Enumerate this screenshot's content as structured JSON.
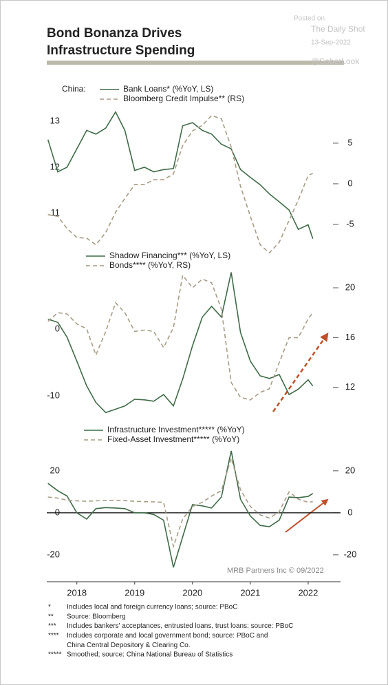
{
  "header": {
    "title": [
      "Bond Bonanza Drives",
      "Infrastructure Spending"
    ]
  },
  "watermark": {
    "posted": "Posted on",
    "site": "The Daily Shot",
    "date": "13-Sep-2022",
    "handle": "@SoberLook"
  },
  "chart_data": [
    {
      "type": "line",
      "label": "China:",
      "x": [
        2018,
        2018.17,
        2018.33,
        2018.5,
        2018.67,
        2018.83,
        2019,
        2019.17,
        2019.33,
        2019.5,
        2019.67,
        2019.83,
        2020,
        2020.17,
        2020.33,
        2020.5,
        2020.67,
        2020.83,
        2021,
        2021.17,
        2021.33,
        2021.5,
        2021.67,
        2021.83,
        2022,
        2022.17,
        2022.33,
        2022.5,
        2022.58
      ],
      "xlim": [
        2017.98,
        2023.06
      ],
      "ylim": [
        10.07,
        13.3
      ],
      "yticks": [
        11,
        12,
        13
      ],
      "y2lim": [
        -8.9,
        9.4
      ],
      "y2ticks": [
        -5,
        0,
        5
      ],
      "series": [
        {
          "name": "Bank Loans* (%YoY, LS)",
          "color": "#3f6b47",
          "style": "solid",
          "values": [
            12.6,
            11.9,
            12.0,
            12.4,
            12.8,
            12.72,
            12.85,
            13.2,
            12.8,
            11.93,
            12.0,
            11.9,
            11.95,
            11.97,
            12.9,
            12.97,
            12.8,
            12.72,
            12.5,
            12.4,
            11.95,
            11.78,
            11.62,
            11.42,
            11.25,
            11.07,
            10.65,
            10.75,
            10.45
          ]
        },
        {
          "name": "Bloomberg Credit Impulse** (RS)",
          "color": "#a89c86",
          "style": "dashed",
          "axis": "y2",
          "values": [
            -3.8,
            -4.0,
            -5.5,
            -6.6,
            -6.7,
            -7.5,
            -6.0,
            -3.5,
            -1.8,
            -0.1,
            -0.1,
            0.5,
            0.5,
            1.2,
            4.7,
            6.5,
            7.2,
            8.4,
            8.0,
            4.5,
            -0.3,
            -4.0,
            -7.5,
            -8.5,
            -7.2,
            -4.5,
            -2.0,
            1.0,
            1.3
          ]
        }
      ]
    },
    {
      "type": "line",
      "x": [
        2018,
        2018.17,
        2018.33,
        2018.5,
        2018.67,
        2018.83,
        2019,
        2019.17,
        2019.33,
        2019.5,
        2019.67,
        2019.83,
        2020,
        2020.17,
        2020.33,
        2020.5,
        2020.67,
        2020.83,
        2021,
        2021.17,
        2021.33,
        2021.5,
        2021.67,
        2021.83,
        2022,
        2022.17,
        2022.33,
        2022.5,
        2022.58
      ],
      "xlim": [
        2017.98,
        2023.06
      ],
      "ylim": [
        -13.4,
        9.28
      ],
      "yticks": [
        -10,
        0
      ],
      "y2lim": [
        9.5,
        21.66
      ],
      "y2ticks": [
        12,
        16,
        20
      ],
      "series": [
        {
          "name": "Shadow Financing*** (%YoY, LS)",
          "color": "#3f6b47",
          "style": "solid",
          "values": [
            1.5,
            1.0,
            -1.2,
            -4.8,
            -8.5,
            -11.0,
            -12.5,
            -12.0,
            -11.5,
            -10.5,
            -10.6,
            -10.8,
            -9.8,
            -11.5,
            -7.5,
            -2.5,
            1.8,
            3.4,
            1.8,
            8.5,
            -0.5,
            -4.8,
            -7.0,
            -7.4,
            -6.8,
            -9.8,
            -9.0,
            -7.6,
            -8.5
          ]
        },
        {
          "name": "Bonds**** (%YoY, RS)",
          "color": "#a89c86",
          "style": "dashed",
          "axis": "y2",
          "values": [
            17.3,
            18.0,
            17.9,
            17.1,
            16.7,
            14.6,
            16.5,
            18.8,
            18.0,
            16.5,
            16.6,
            16.5,
            15.2,
            16.8,
            21.0,
            20.0,
            20.7,
            20.4,
            18.3,
            12.4,
            11.2,
            11.0,
            11.6,
            11.9,
            14.0,
            16.0,
            16.0,
            17.5,
            18.0
          ]
        }
      ]
    },
    {
      "type": "line",
      "zero_line": true,
      "x": [
        2018,
        2018.17,
        2018.33,
        2018.5,
        2018.67,
        2018.83,
        2019,
        2019.17,
        2019.33,
        2019.5,
        2019.67,
        2019.83,
        2020,
        2020.17,
        2020.33,
        2020.5,
        2020.67,
        2020.83,
        2021,
        2021.17,
        2021.33,
        2021.5,
        2021.67,
        2021.83,
        2022,
        2022.17,
        2022.33,
        2022.5,
        2022.58
      ],
      "xlim": [
        2017.98,
        2023.06
      ],
      "xticks": [
        {
          "value": 2018.5,
          "label": "2018"
        },
        {
          "value": 2019.5,
          "label": "2019"
        },
        {
          "value": 2020.5,
          "label": "2020"
        },
        {
          "value": 2021.5,
          "label": "2021"
        },
        {
          "value": 2022.5,
          "label": "2022"
        }
      ],
      "ylim": [
        -27.9,
        31.1
      ],
      "yticks": [
        -20,
        0,
        20
      ],
      "y2lim": [
        -27.9,
        31.1
      ],
      "y2ticks": [
        -20,
        0,
        20
      ],
      "series": [
        {
          "name": "Infrastructure Investment***** (%YoY)",
          "color": "#3f6b47",
          "style": "solid",
          "values": [
            14,
            10.5,
            8.0,
            0,
            -3.0,
            2.0,
            2.5,
            2.3,
            2.0,
            0,
            0,
            -0.8,
            -3.5,
            -26,
            -11.5,
            3.9,
            3.3,
            2.3,
            7.5,
            29.5,
            6.5,
            -1.5,
            -6.0,
            -6.6,
            -3.5,
            7.5,
            7.2,
            7.8,
            9.2
          ]
        },
        {
          "name": "Fixed-Asset Investment***** (%YoY)",
          "color": "#a89c86",
          "style": "dashed",
          "values": [
            7.5,
            7.0,
            6.0,
            5.7,
            5.5,
            5.7,
            5.9,
            6.0,
            5.8,
            5.5,
            5.3,
            5.2,
            5.0,
            -16,
            -3.0,
            3.0,
            5.0,
            8.0,
            10.5,
            26,
            11,
            3.0,
            -1.0,
            -2.5,
            0.5,
            10,
            6.5,
            5.0,
            5.3
          ]
        }
      ]
    }
  ],
  "source": "MRB Partners Inc © 09/2022",
  "footnotes": [
    {
      "mark": "*",
      "lines": [
        "Includes local and foreign currency loans; source: PBoC"
      ]
    },
    {
      "mark": "**",
      "lines": [
        "Source: Bloomberg"
      ]
    },
    {
      "mark": "***",
      "lines": [
        "Includes bankers' acceptances, entrusted loans, trust loans;  source: PBoC"
      ]
    },
    {
      "mark": "****",
      "lines": [
        "Includes corporate and local government bond; source: PBoC and",
        "China Central Depository & Clearing Co."
      ]
    },
    {
      "mark": "*****",
      "lines": [
        "Smoothed; source: China National Bureau of Statistics"
      ]
    }
  ]
}
